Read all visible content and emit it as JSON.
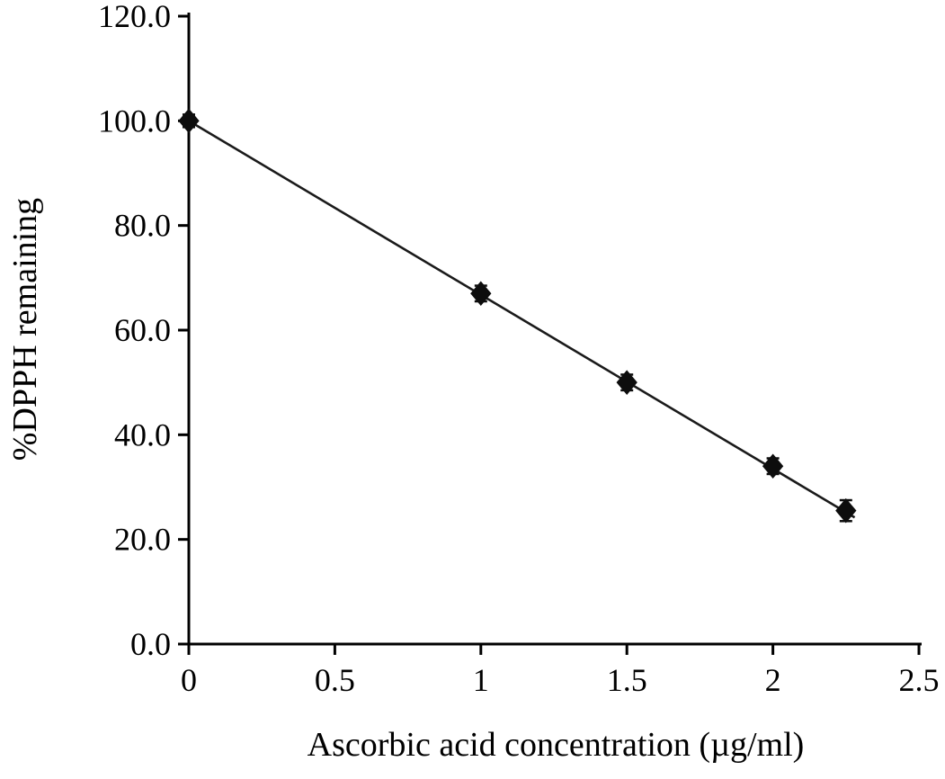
{
  "chart_data": {
    "type": "scatter",
    "title": "",
    "xlabel": "Ascorbic acid concentration (µg/ml)",
    "ylabel": "%DPPH remaining",
    "xlim": [
      0,
      2.5
    ],
    "ylim": [
      0,
      120
    ],
    "grid": false,
    "legend": null,
    "x": [
      0,
      1,
      1.5,
      2,
      2.25
    ],
    "y": [
      100.0,
      67.0,
      50.0,
      34.0,
      25.5
    ],
    "yerr": [
      1.2,
      1.5,
      1.5,
      1.5,
      2.0
    ],
    "trendline": {
      "x1": 0,
      "y1": 100.0,
      "x2": 2.28,
      "y2": 24.2
    },
    "xticks": {
      "values": [
        0,
        0.5,
        1,
        1.5,
        2,
        2.5
      ],
      "labels": [
        "0",
        "0.5",
        "1",
        "1.5",
        "2",
        "2.5"
      ]
    },
    "yticks": {
      "values": [
        0,
        20,
        40,
        60,
        80,
        100,
        120
      ],
      "labels": [
        "0.0",
        "20.0",
        "40.0",
        "60.0",
        "80.0",
        "100.0",
        "120.0"
      ]
    },
    "marker": "diamond",
    "colors": {
      "axis": "#000000",
      "line": "#1a1a1a",
      "marker": "#0d0d0d",
      "text": "#000000",
      "background": "#ffffff"
    }
  }
}
